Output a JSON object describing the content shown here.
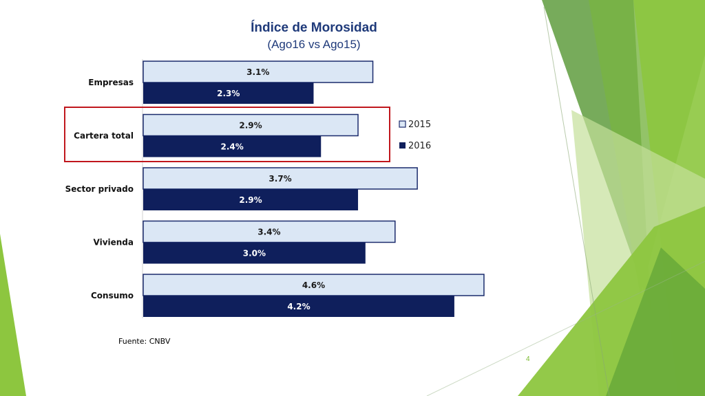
{
  "slide": {
    "title": "Índice de Morosidad",
    "subtitle": "(Ago16 vs Ago15)",
    "source": "Fuente: CNBV",
    "page_number": "4",
    "colors": {
      "accent_green": "#8dc63f",
      "dark_green": "#5e9e3a",
      "highlight_red": "#c0161c",
      "title_blue": "#1f3a7a"
    }
  },
  "chart_data": {
    "type": "bar",
    "orientation": "horizontal",
    "categories": [
      "Empresas",
      "Cartera total",
      "Sector privado",
      "Vivienda",
      "Consumo"
    ],
    "series": [
      {
        "name": "2015",
        "values": [
          3.1,
          2.9,
          3.7,
          3.4,
          4.6
        ],
        "labels": [
          "3.1%",
          "2.9%",
          "3.7%",
          "3.4%",
          "4.6%"
        ],
        "color": "#dbe7f5",
        "border": "#1a2a6c",
        "label_color": "#1a1a1a"
      },
      {
        "name": "2016",
        "values": [
          2.3,
          2.4,
          2.9,
          3.0,
          4.2
        ],
        "labels": [
          "2.3%",
          "2.4%",
          "2.9%",
          "3.0%",
          "4.2%"
        ],
        "color": "#0f1f5c",
        "border": "#0f1f5c",
        "label_color": "#ffffff"
      }
    ],
    "xlim": [
      0,
      5.0
    ],
    "highlighted_category": "Cartera total",
    "grid": false,
    "legend_position": "right"
  }
}
